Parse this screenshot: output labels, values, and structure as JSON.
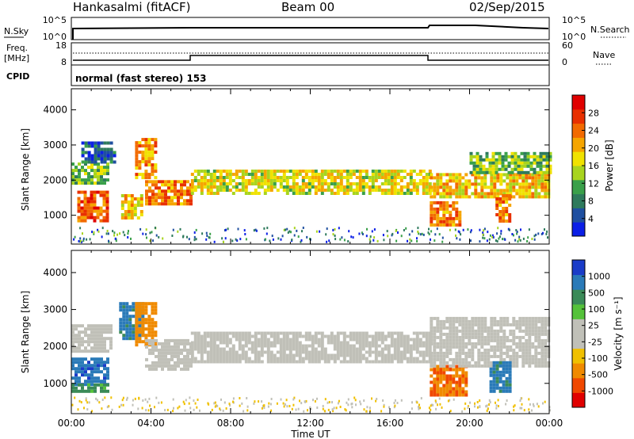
{
  "header": {
    "title": "Hankasalmi (fitACF)",
    "beam": "Beam 00",
    "date": "02/Sep/2015"
  },
  "top_panels": {
    "nsky": {
      "left_label": "N.Sky",
      "right_label": "N.Search",
      "left_ticks": [
        "10^5",
        "10^0"
      ],
      "right_ticks": [
        "10^5",
        "10^0"
      ]
    },
    "freq": {
      "left_label_1": "Freq.",
      "left_label_2": "[MHz]",
      "right_label": "Nave",
      "left_ticks": [
        "18",
        "8"
      ],
      "right_ticks": [
        "60",
        "0"
      ]
    },
    "cpid": {
      "label": "CPID",
      "text": "normal (fast stereo) 153"
    }
  },
  "colorbars": {
    "power": {
      "label": "Power [dB]",
      "ticks": [
        "28",
        "24",
        "20",
        "16",
        "12",
        "8",
        "4"
      ],
      "colors": [
        "#0b1fe6",
        "#1f4fa0",
        "#2e7a5c",
        "#3aa04a",
        "#a8d41e",
        "#f0e200",
        "#f5a500",
        "#f26a00",
        "#e83000",
        "#e00000"
      ]
    },
    "velocity": {
      "label": "Velocity [m s⁻¹]",
      "ticks": [
        "1000",
        "500",
        "100",
        "25",
        "-25",
        "-100",
        "-500",
        "-1000"
      ],
      "colors": [
        "#1a3cc8",
        "#2a7ab8",
        "#3a8a58",
        "#55c23a",
        "#c0c0b8",
        "#c0c0b8",
        "#f0c000",
        "#f08a00",
        "#f04800",
        "#e00000"
      ]
    }
  },
  "axes": {
    "ylabel": "Slant Range [km]",
    "xlabel": "Time UT",
    "yticks": [
      "4000",
      "3000",
      "2000",
      "1000"
    ],
    "xticks": [
      "00:00",
      "04:00",
      "08:00",
      "12:00",
      "16:00",
      "20:00",
      "00:00"
    ]
  },
  "chart_data": [
    {
      "type": "heatmap",
      "title": "",
      "xlabel": "Time UT",
      "ylabel": "Slant Range [km]",
      "quantity": "Power [dB]",
      "x_range_hours": [
        0,
        24
      ],
      "y_range_km": [
        180,
        4600
      ],
      "color_range": [
        0,
        30
      ],
      "regions": [
        {
          "t_start": 0.3,
          "t_end": 1.8,
          "r_low": 800,
          "r_high": 1700,
          "value": 24
        },
        {
          "t_start": 0.0,
          "t_end": 1.8,
          "r_low": 1900,
          "r_high": 2500,
          "value": 12
        },
        {
          "t_start": 0.5,
          "t_end": 2.2,
          "r_low": 2500,
          "r_high": 3100,
          "value": 6
        },
        {
          "t_start": 2.5,
          "t_end": 3.6,
          "r_low": 900,
          "r_high": 1600,
          "value": 18
        },
        {
          "t_start": 3.2,
          "t_end": 4.2,
          "r_low": 2100,
          "r_high": 3200,
          "value": 20
        },
        {
          "t_start": 3.7,
          "t_end": 6.0,
          "r_low": 1300,
          "r_high": 2000,
          "value": 22
        },
        {
          "t_start": 6.0,
          "t_end": 18.0,
          "r_low": 1600,
          "r_high": 2300,
          "value": 16
        },
        {
          "t_start": 18.0,
          "t_end": 19.5,
          "r_low": 700,
          "r_high": 1400,
          "value": 22
        },
        {
          "t_start": 18.0,
          "t_end": 24.0,
          "r_low": 1500,
          "r_high": 2200,
          "value": 18
        },
        {
          "t_start": 21.3,
          "t_end": 22.0,
          "r_low": 800,
          "r_high": 1600,
          "value": 22
        },
        {
          "t_start": 20.0,
          "t_end": 24.0,
          "r_low": 2200,
          "r_high": 2800,
          "value": 12
        }
      ]
    },
    {
      "type": "heatmap",
      "title": "",
      "xlabel": "Time UT",
      "ylabel": "Slant Range [km]",
      "quantity": "Velocity [m s-1]",
      "x_range_hours": [
        0,
        24
      ],
      "y_range_km": [
        180,
        4600
      ],
      "regions": [
        {
          "t_start": 0.0,
          "t_end": 1.8,
          "r_low": 1000,
          "r_high": 1700,
          "value": 600
        },
        {
          "t_start": 0.0,
          "t_end": 1.8,
          "r_low": 800,
          "r_high": 1000,
          "value": 80
        },
        {
          "t_start": 0.0,
          "t_end": 2.0,
          "r_low": 1900,
          "r_high": 2600,
          "value": 0
        },
        {
          "t_start": 2.4,
          "t_end": 3.6,
          "r_low": 2200,
          "r_high": 3200,
          "value": 400
        },
        {
          "t_start": 3.2,
          "t_end": 4.2,
          "r_low": 2000,
          "r_high": 3200,
          "value": -300
        },
        {
          "t_start": 3.7,
          "t_end": 6.0,
          "r_low": 1400,
          "r_high": 2200,
          "value": 0
        },
        {
          "t_start": 6.0,
          "t_end": 18.0,
          "r_low": 1600,
          "r_high": 2400,
          "value": 0
        },
        {
          "t_start": 18.0,
          "t_end": 19.8,
          "r_low": 700,
          "r_high": 1500,
          "value": -500
        },
        {
          "t_start": 18.0,
          "t_end": 24.0,
          "r_low": 1500,
          "r_high": 2800,
          "value": 0
        },
        {
          "t_start": 21.0,
          "t_end": 22.0,
          "r_low": 800,
          "r_high": 1600,
          "value": 400
        }
      ]
    }
  ]
}
